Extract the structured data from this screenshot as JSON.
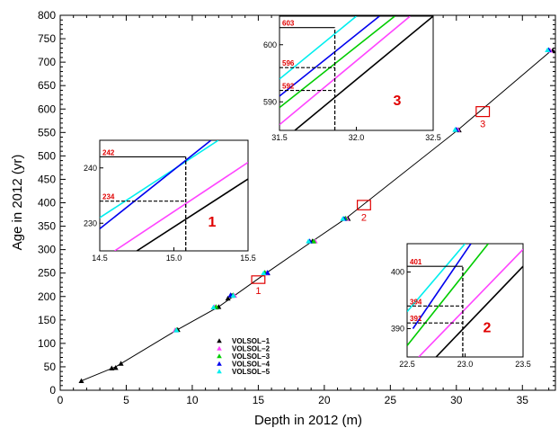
{
  "chart_data": {
    "type": "scatter",
    "xlabel": "Depth in 2012 (m)",
    "ylabel": "Age in 2012 (yr)",
    "xlim": [
      0,
      37.5
    ],
    "ylim": [
      0,
      800
    ],
    "x_ticks": [
      "0",
      "5",
      "10",
      "15",
      "20",
      "25",
      "30",
      "35"
    ],
    "y_ticks": [
      "0",
      "50",
      "100",
      "150",
      "200",
      "250",
      "300",
      "350",
      "400",
      "450",
      "500",
      "550",
      "600",
      "650",
      "700",
      "750",
      "800"
    ],
    "grid": false,
    "legend_position": "bottom-center",
    "age_depth_line": {
      "x": [
        1.6,
        4.2,
        8.8,
        12.0,
        15.6,
        19.1,
        21.6,
        30.1,
        37.2
      ],
      "y": [
        20,
        50,
        128,
        178,
        250,
        318,
        366,
        555,
        725
      ]
    },
    "series": [
      {
        "name": "VOLSOL−1",
        "color": "#000000",
        "x": [
          1.6,
          3.9,
          4.2,
          4.6,
          8.9,
          11.8,
          12.0,
          12.7,
          13.0,
          15.7,
          19.1,
          21.8,
          30.2,
          37.3
        ],
        "y": [
          20,
          47,
          48,
          57,
          129,
          177,
          178,
          196,
          202,
          250,
          318,
          366,
          555,
          725
        ]
      },
      {
        "name": "VOLSOL−2",
        "color": "#ff44ff",
        "x": [
          8.7,
          11.7,
          13.2,
          15.6,
          19.3,
          21.7,
          30.1,
          37.1
        ],
        "y": [
          128,
          178,
          202,
          250,
          318,
          366,
          556,
          725
        ]
      },
      {
        "name": "VOLSOL−3",
        "color": "#00cc00",
        "x": [
          8.8,
          11.8,
          13.1,
          15.5,
          19.2,
          21.6,
          30.0,
          37.0
        ],
        "y": [
          129,
          178,
          203,
          251,
          318,
          367,
          556,
          726
        ]
      },
      {
        "name": "VOLSOL−4",
        "color": "#0000ee",
        "x": [
          12.9,
          15.7,
          18.9,
          21.5,
          30.0,
          37.0
        ],
        "y": [
          203,
          251,
          318,
          366,
          556,
          726
        ]
      },
      {
        "name": "VOLSOL−5",
        "color": "#00eeee",
        "x": [
          8.8,
          11.6,
          13.1,
          15.4,
          18.8,
          21.4,
          29.9,
          36.9
        ],
        "y": [
          128,
          177,
          202,
          250,
          318,
          366,
          556,
          726
        ]
      }
    ],
    "boxes": [
      {
        "label": "1",
        "x": [
          14.5,
          15.5
        ],
        "y": [
          228,
          244
        ]
      },
      {
        "label": "2",
        "x": [
          22.5,
          23.5
        ],
        "y": [
          385,
          405
        ]
      },
      {
        "label": "3",
        "x": [
          31.5,
          32.5
        ],
        "y": [
          584,
          605
        ]
      }
    ],
    "insets": [
      {
        "label": "1",
        "xlim": [
          14.5,
          15.5
        ],
        "ylim": [
          225,
          245
        ],
        "x_ticks": [
          "14.5",
          "15.0",
          "15.5"
        ],
        "y_ticks": [
          "230",
          "240"
        ],
        "depth_marker": 15.08,
        "values": [
          "242",
          "234"
        ],
        "value_levels": [
          242,
          234
        ],
        "series_lines": [
          {
            "color": "#00eeee",
            "x": [
              14.5,
              15.3
            ],
            "y": [
              231,
              245
            ]
          },
          {
            "color": "#0000ee",
            "x": [
              14.5,
              15.25
            ],
            "y": [
              229,
              245
            ]
          },
          {
            "color": "#ff44ff",
            "x": [
              14.6,
              15.5
            ],
            "y": [
              225,
              241
            ]
          },
          {
            "color": "#000000",
            "x": [
              14.75,
              15.5
            ],
            "y": [
              225,
              238
            ]
          }
        ]
      },
      {
        "label": "2",
        "xlim": [
          22.5,
          23.5
        ],
        "ylim": [
          385,
          405
        ],
        "x_ticks": [
          "22.5",
          "23.0",
          "23.5"
        ],
        "y_ticks": [
          "390",
          "400"
        ],
        "depth_marker": 22.98,
        "values": [
          "401",
          "394",
          "391"
        ],
        "value_levels": [
          401,
          394,
          391
        ],
        "series_lines": [
          {
            "color": "#00eeee",
            "x": [
              22.5,
              23.0
            ],
            "y": [
              393,
              405
            ]
          },
          {
            "color": "#0000ee",
            "x": [
              22.55,
              23.05
            ],
            "y": [
              390,
              405
            ]
          },
          {
            "color": "#00cc00",
            "x": [
              22.5,
              23.2
            ],
            "y": [
              387,
              405
            ]
          },
          {
            "color": "#ff44ff",
            "x": [
              22.6,
              23.5
            ],
            "y": [
              385,
              404
            ]
          },
          {
            "color": "#000000",
            "x": [
              22.75,
              23.5
            ],
            "y": [
              385,
              401
            ]
          }
        ]
      },
      {
        "label": "3",
        "xlim": [
          31.5,
          32.5
        ],
        "ylim": [
          585,
          605
        ],
        "x_ticks": [
          "31.5",
          "32.0",
          "32.5"
        ],
        "y_ticks": [
          "590",
          "600"
        ],
        "depth_marker": 31.86,
        "values": [
          "603",
          "596",
          "592"
        ],
        "value_levels": [
          603,
          596,
          592
        ],
        "series_lines": [
          {
            "color": "#00eeee",
            "x": [
              31.5,
              32.0
            ],
            "y": [
              594,
              605
            ]
          },
          {
            "color": "#0000ee",
            "x": [
              31.5,
              32.15
            ],
            "y": [
              591,
              605
            ]
          },
          {
            "color": "#00cc00",
            "x": [
              31.5,
              32.25
            ],
            "y": [
              589,
              605
            ]
          },
          {
            "color": "#ff44ff",
            "x": [
              31.5,
              32.35
            ],
            "y": [
              586,
              605
            ]
          },
          {
            "color": "#000000",
            "x": [
              31.6,
              32.5
            ],
            "y": [
              585,
              605
            ]
          }
        ]
      }
    ],
    "box_color": "#e00000",
    "label_color": "#e00000"
  }
}
